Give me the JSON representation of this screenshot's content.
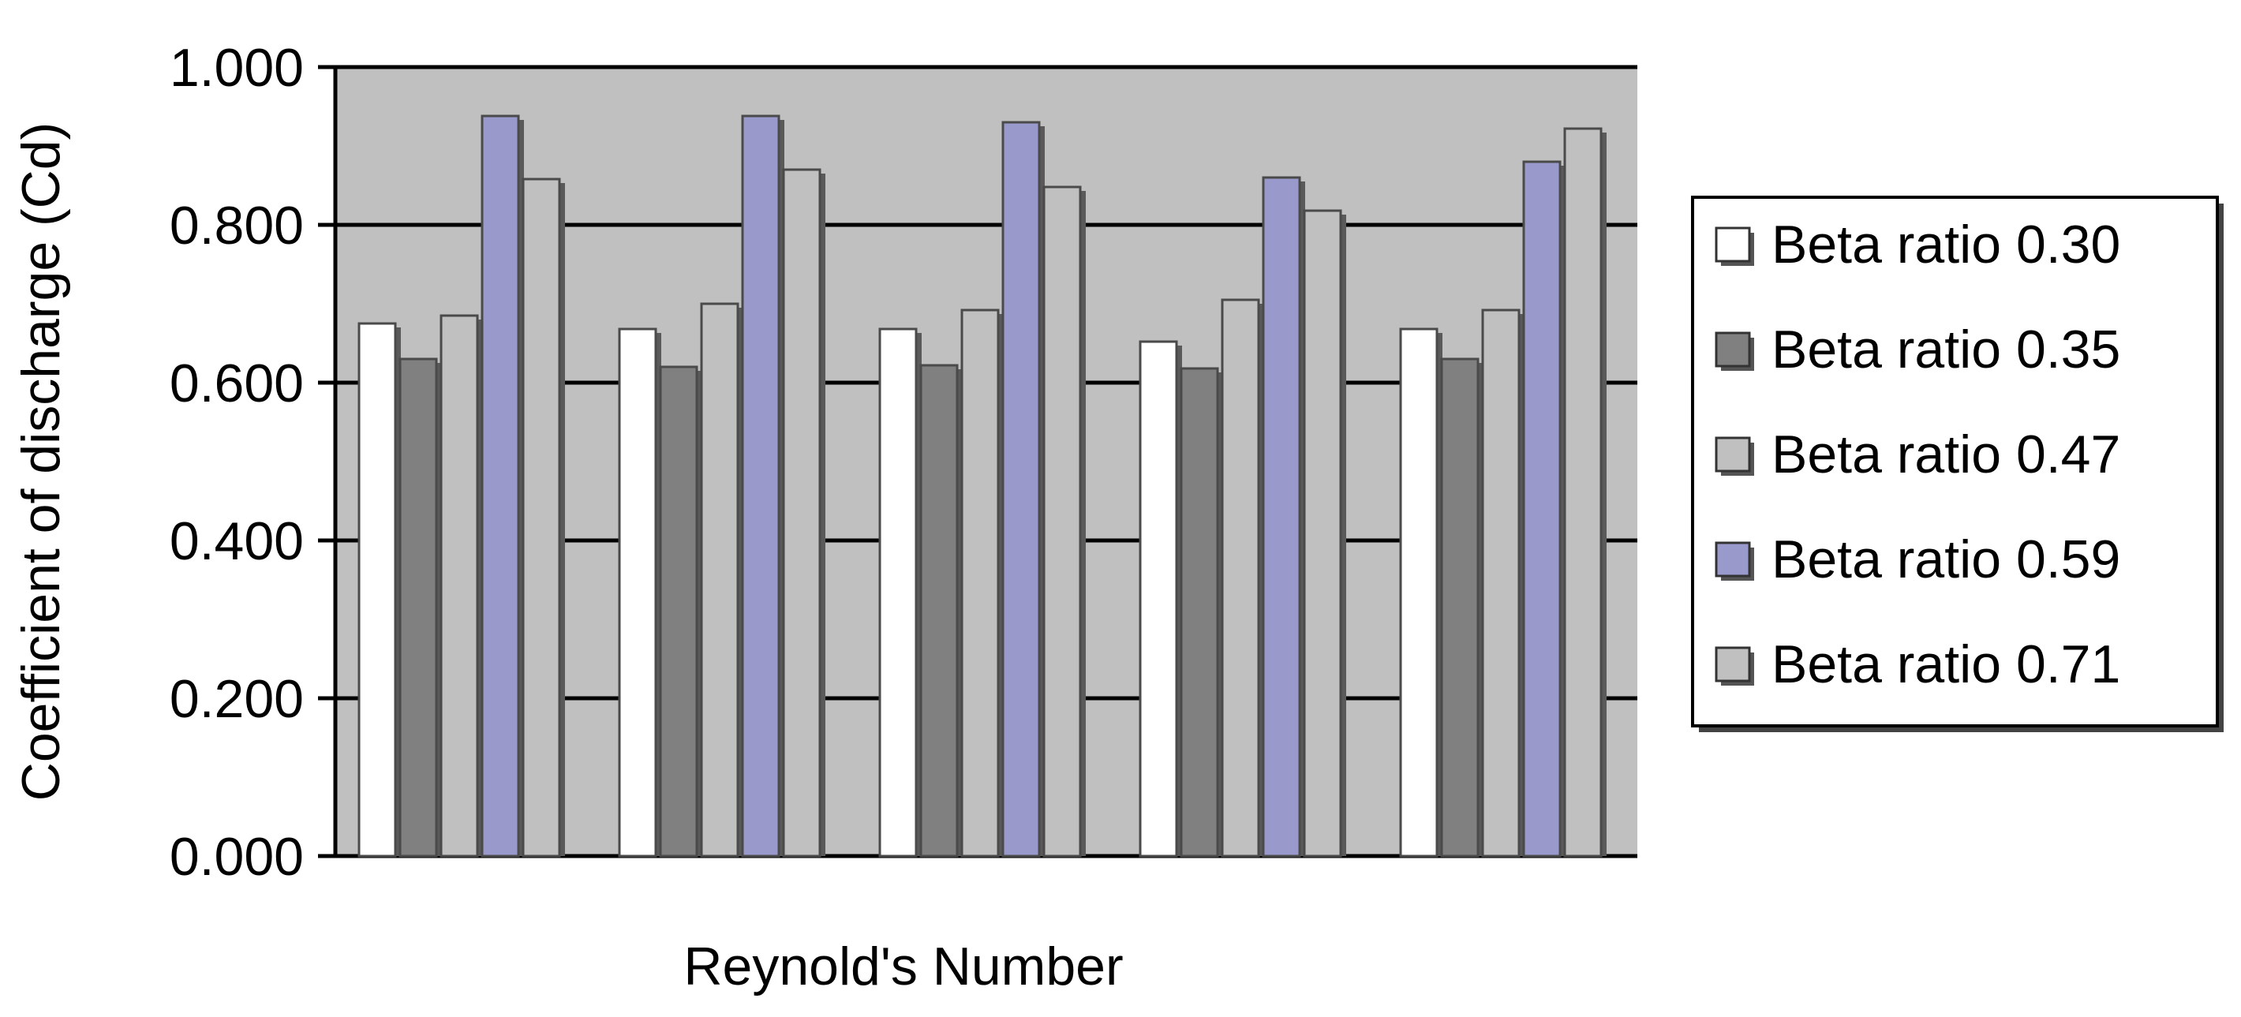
{
  "chart_data": {
    "type": "bar",
    "title": "",
    "xlabel": "Reynold's Number",
    "ylabel": "Coefficient of discharge (Cd)",
    "ylim": [
      0,
      1
    ],
    "yticks": [
      "0.000",
      "0.200",
      "0.400",
      "0.600",
      "0.800",
      "1.000"
    ],
    "categories": [
      "",
      "",
      "",
      "",
      ""
    ],
    "grid": true,
    "legend_position": "right",
    "series": [
      {
        "name": "Beta ratio 0.30",
        "color": "#ffffff",
        "values": [
          0.675,
          0.668,
          0.668,
          0.652,
          0.668
        ]
      },
      {
        "name": "Beta ratio 0.35",
        "color": "#808080",
        "values": [
          0.63,
          0.62,
          0.622,
          0.618,
          0.63
        ]
      },
      {
        "name": "Beta ratio 0.47",
        "color": "#c0c0c0",
        "values": [
          0.685,
          0.7,
          0.692,
          0.705,
          0.692
        ]
      },
      {
        "name": "Beta ratio 0.59",
        "color": "#9999cc",
        "values": [
          0.938,
          0.938,
          0.93,
          0.86,
          0.88
        ]
      },
      {
        "name": "Beta ratio 0.71",
        "color": "#c0c0c0",
        "values": [
          0.858,
          0.87,
          0.848,
          0.818,
          0.922
        ]
      }
    ],
    "plot_background": "#c0c0c0"
  }
}
